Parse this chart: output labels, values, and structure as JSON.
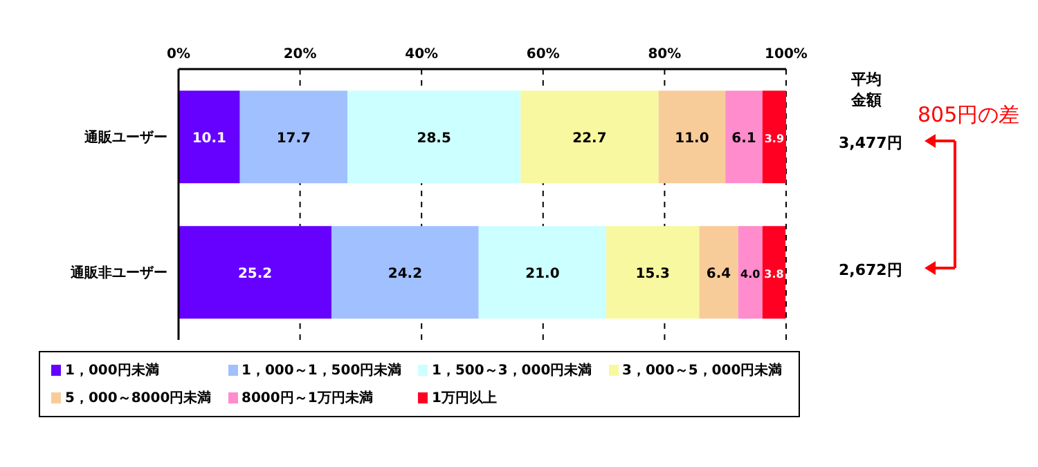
{
  "chart_data": {
    "type": "bar",
    "orientation": "horizontal",
    "stacked": true,
    "categories": [
      "通販ユーザー",
      "通販非ユーザー"
    ],
    "series": [
      {
        "name": "1，000円未満",
        "color": "#6600ff",
        "values": [
          10.1,
          25.2
        ],
        "value_labels": [
          "10.1",
          "25.2"
        ]
      },
      {
        "name": "1，000～1，500円未満",
        "color": "#a0c0ff",
        "values": [
          17.7,
          24.2
        ],
        "value_labels": [
          "17.7",
          "24.2"
        ]
      },
      {
        "name": "1，500～3，000円未満",
        "color": "#ccffff",
        "values": [
          28.5,
          21.0
        ],
        "value_labels": [
          "28.5",
          "21.0"
        ]
      },
      {
        "name": "3，000～5，000円未満",
        "color": "#f8f8a0",
        "values": [
          22.7,
          15.3
        ],
        "value_labels": [
          "22.7",
          "15.3"
        ]
      },
      {
        "name": "5，000～8000円未満",
        "color": "#f8cc99",
        "values": [
          11.0,
          6.4
        ],
        "value_labels": [
          "11.0",
          "6.4"
        ]
      },
      {
        "name": "8000円～1万円未満",
        "color": "#ff8ccc",
        "values": [
          6.1,
          4.0
        ],
        "value_labels": [
          "6.1",
          "4.0"
        ]
      },
      {
        "name": "1万円以上",
        "color": "#ff0022",
        "values": [
          3.9,
          3.8
        ],
        "value_labels": [
          "3.9",
          "3.8"
        ]
      }
    ],
    "xlim": [
      0,
      100
    ],
    "xticks": [
      {
        "value": 0,
        "label": "0%"
      },
      {
        "value": 20,
        "label": "20%"
      },
      {
        "value": 40,
        "label": "40%"
      },
      {
        "value": 60,
        "label": "60%"
      },
      {
        "value": 80,
        "label": "80%"
      },
      {
        "value": 100,
        "label": "100%"
      }
    ],
    "grid": "x",
    "legend": "bottom",
    "annotations": [
      "平均金額",
      "3,477円",
      "2,672円",
      "805円の差"
    ]
  }
}
